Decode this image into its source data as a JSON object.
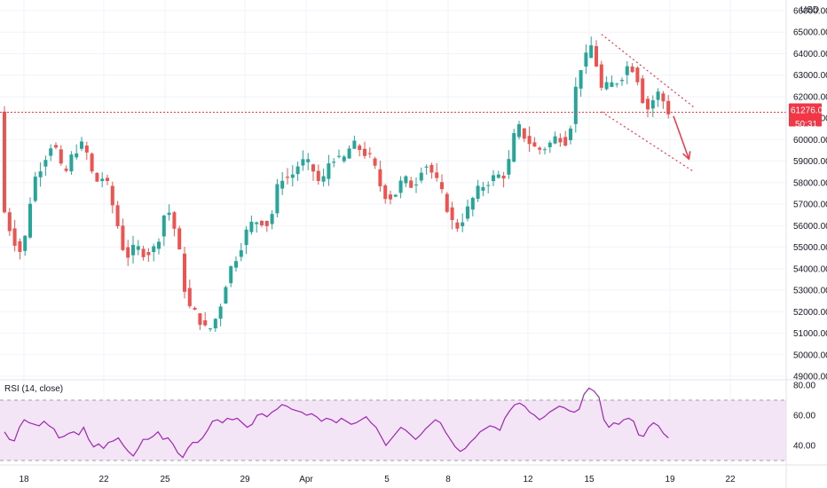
{
  "chart_data": [
    {
      "type": "candlestick",
      "currency": "USD",
      "last_price": "61276.02",
      "countdown": "50:31",
      "ylim": [
        49000,
        66000
      ],
      "y_ticks": [
        "49000.00",
        "50000.00",
        "51000.00",
        "52000.00",
        "53000.00",
        "54000.00",
        "55000.00",
        "56000.00",
        "57000.00",
        "58000.00",
        "59000.00",
        "60000.00",
        "61000.00",
        "62000.00",
        "63000.00",
        "64000.00",
        "65000.00",
        "66000.00"
      ],
      "x_ticks": [
        "18",
        "22",
        "25",
        "29",
        "Apr",
        "5",
        "8",
        "12",
        "15",
        "19",
        "22"
      ],
      "path": [
        [
          0,
          57000
        ],
        [
          2,
          55500
        ],
        [
          4,
          54600
        ],
        [
          6,
          58000
        ],
        [
          8,
          59000
        ],
        [
          10,
          60000
        ],
        [
          12,
          58200
        ],
        [
          14,
          59500
        ],
        [
          16,
          59800
        ],
        [
          18,
          58000
        ],
        [
          20,
          58300
        ],
        [
          22,
          56500
        ],
        [
          24,
          54500
        ],
        [
          26,
          55000
        ],
        [
          28,
          54700
        ],
        [
          30,
          55000
        ],
        [
          32,
          57000
        ],
        [
          34,
          55500
        ],
        [
          36,
          52300
        ],
        [
          38,
          51800
        ],
        [
          40,
          51000
        ],
        [
          42,
          51900
        ],
        [
          44,
          53800
        ],
        [
          46,
          54800
        ],
        [
          48,
          56000
        ],
        [
          50,
          56300
        ],
        [
          52,
          56000
        ],
        [
          54,
          58300
        ],
        [
          56,
          58200
        ],
        [
          58,
          59000
        ],
        [
          60,
          58800
        ],
        [
          62,
          57800
        ],
        [
          64,
          59300
        ],
        [
          66,
          58900
        ],
        [
          68,
          59800
        ],
        [
          70,
          59500
        ],
        [
          72,
          59000
        ],
        [
          74,
          57500
        ],
        [
          76,
          57300
        ],
        [
          78,
          58200
        ],
        [
          80,
          57800
        ],
        [
          82,
          59000
        ],
        [
          84,
          58300
        ],
        [
          86,
          57200
        ],
        [
          88,
          55800
        ],
        [
          90,
          56500
        ],
        [
          92,
          57500
        ],
        [
          94,
          58000
        ],
        [
          96,
          58300
        ],
        [
          98,
          58400
        ],
        [
          100,
          60700
        ],
        [
          102,
          60000
        ],
        [
          104,
          59500
        ],
        [
          106,
          59700
        ],
        [
          108,
          60200
        ],
        [
          110,
          59900
        ],
        [
          112,
          63200
        ],
        [
          114,
          64000
        ],
        [
          115,
          64700
        ],
        [
          116,
          62300
        ],
        [
          118,
          62500
        ],
        [
          120,
          62800
        ],
        [
          122,
          63600
        ],
        [
          124,
          62600
        ],
        [
          125,
          61200
        ],
        [
          126,
          61700
        ],
        [
          128,
          62300
        ],
        [
          129,
          61300
        ]
      ],
      "channel": {
        "upper": [
          [
            116,
            64900
          ],
          [
            134,
            61500
          ]
        ],
        "lower": [
          [
            116,
            61300
          ],
          [
            134,
            58500
          ]
        ]
      },
      "arrow": {
        "from": [
          130,
          61100
        ],
        "to": [
          133,
          59100
        ]
      },
      "colors": {
        "up": "#26a69a",
        "down": "#ef5350",
        "annotation": "#f23645"
      }
    },
    {
      "type": "line",
      "series": [
        {
          "name": "RSI (14, close)",
          "values": [
            49,
            44,
            43,
            52,
            57,
            55,
            54,
            53,
            56,
            53,
            51,
            45,
            46,
            48,
            49,
            47,
            52,
            44,
            39,
            41,
            38,
            42,
            43,
            45,
            40,
            36,
            33,
            38,
            44,
            44,
            46,
            49,
            44,
            45,
            41,
            35,
            32,
            38,
            42,
            42,
            45,
            50,
            56,
            57,
            55,
            58,
            57,
            58,
            55,
            52,
            54,
            60,
            61,
            59,
            62,
            64,
            67,
            66,
            64,
            63,
            62,
            60,
            61,
            59,
            56,
            58,
            57,
            55,
            58,
            56,
            54,
            55,
            57,
            59,
            55,
            52,
            46,
            40,
            44,
            48,
            52,
            50,
            47,
            44,
            47,
            51,
            54,
            57,
            55,
            49,
            44,
            39,
            36,
            38,
            42,
            45,
            49,
            51,
            53,
            52,
            50,
            58,
            63,
            67,
            68,
            66,
            62,
            60,
            57,
            59,
            62,
            64,
            66,
            65,
            63,
            62,
            64,
            74,
            78,
            76,
            72,
            57,
            52,
            55,
            54,
            57,
            58,
            56,
            47,
            46,
            52,
            55,
            53,
            48,
            45
          ]
        }
      ],
      "ylim": [
        28,
        82
      ],
      "y_ticks": [
        "40.00",
        "60.00",
        "80.00"
      ],
      "band": [
        30,
        70
      ],
      "colors": {
        "line": "#9c27b0",
        "band": "#f3e5f5"
      }
    }
  ]
}
